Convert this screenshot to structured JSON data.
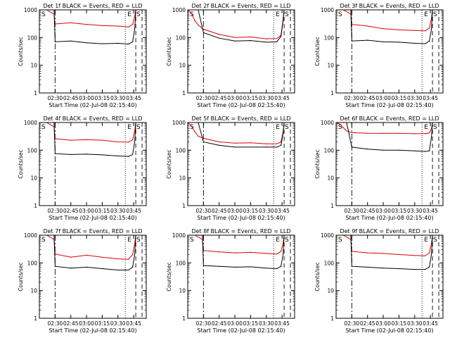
{
  "chart_data": {
    "type": "line",
    "grid": false,
    "legend": "none",
    "colors": {
      "events": "#000000",
      "lld": "#e00000",
      "axes": "#000000"
    },
    "common": {
      "xlabel": "Start Time (02-Jul-08 02:15:40)",
      "ylabel": "Counts/sec",
      "xlim": [
        "02:15",
        "03:57"
      ],
      "xticks": [
        "02:30",
        "02:45",
        "03:00",
        "03:15",
        "03:30",
        "03:45"
      ],
      "ylim": [
        1,
        1000
      ],
      "yscale": "log",
      "yticks": [
        "1",
        "10",
        "100",
        "1000"
      ],
      "series_names": [
        "Events",
        "LLD"
      ],
      "markers": [
        {
          "time": "02:30",
          "style": "dashdot"
        },
        {
          "time": "03:37",
          "style": "dotted"
        },
        {
          "time": "03:47",
          "style": "dashed"
        },
        {
          "time": "03:53",
          "style": "dashed"
        }
      ],
      "marker_labels": [
        "S",
        "E",
        "S"
      ]
    },
    "panels": [
      {
        "title": "Det 1f BLACK = Events, RED = LLD",
        "x": [
          "02:15",
          "02:22",
          "02:29",
          "02:30",
          "02:45",
          "03:00",
          "03:15",
          "03:30",
          "03:40",
          "03:44",
          "03:46",
          "03:47",
          "03:50",
          "03:52",
          "03:53",
          "03:57"
        ],
        "events": [
          1000,
          1000,
          1000,
          70,
          75,
          65,
          60,
          62,
          58,
          70,
          200,
          1000,
          1000,
          1000,
          1000,
          1000
        ],
        "lld": [
          1000,
          1000,
          700,
          310,
          340,
          300,
          270,
          260,
          240,
          300,
          600,
          1000,
          1000,
          1000,
          1000,
          1000
        ]
      },
      {
        "title": "Det 2f BLACK = Events, RED = LLD",
        "x": [
          "02:15",
          "02:18",
          "02:22",
          "02:25",
          "02:30",
          "02:45",
          "03:00",
          "03:15",
          "03:30",
          "03:40",
          "03:44",
          "03:46",
          "03:47",
          "03:50",
          "03:53",
          "03:57"
        ],
        "events": [
          1000,
          1000,
          1000,
          1000,
          150,
          95,
          75,
          78,
          68,
          70,
          110,
          400,
          1000,
          1000,
          1000,
          1000
        ],
        "lld": [
          1000,
          800,
          400,
          280,
          200,
          130,
          100,
          105,
          90,
          92,
          120,
          450,
          1000,
          1000,
          1000,
          1000
        ]
      },
      {
        "title": "Det 3f BLACK = Events, RED = LLD",
        "x": [
          "02:15",
          "02:22",
          "02:29",
          "02:30",
          "02:45",
          "03:00",
          "03:15",
          "03:30",
          "03:40",
          "03:44",
          "03:46",
          "03:47",
          "03:50",
          "03:52",
          "03:53",
          "03:57"
        ],
        "events": [
          1000,
          1000,
          1000,
          75,
          80,
          70,
          68,
          62,
          60,
          75,
          200,
          1000,
          1000,
          1000,
          1000,
          1000
        ],
        "lld": [
          1000,
          1000,
          700,
          300,
          260,
          210,
          190,
          180,
          175,
          220,
          500,
          1000,
          1000,
          1000,
          1000,
          1000
        ]
      },
      {
        "title": "Det 4f BLACK = Events, RED = LLD",
        "x": [
          "02:15",
          "02:22",
          "02:29",
          "02:30",
          "02:45",
          "03:00",
          "03:15",
          "03:30",
          "03:40",
          "03:44",
          "03:46",
          "03:47",
          "03:50",
          "03:52",
          "03:53",
          "03:57"
        ],
        "events": [
          1000,
          1000,
          1000,
          75,
          70,
          72,
          68,
          62,
          60,
          70,
          200,
          1000,
          1000,
          1000,
          1000,
          1000
        ],
        "lld": [
          1000,
          1000,
          700,
          260,
          230,
          240,
          230,
          200,
          195,
          240,
          500,
          1000,
          1000,
          1000,
          1000,
          1000
        ]
      },
      {
        "title": "Det 5f BLACK = Events, RED = LLD",
        "x": [
          "02:15",
          "02:18",
          "02:22",
          "02:25",
          "02:30",
          "02:45",
          "03:00",
          "03:15",
          "03:30",
          "03:40",
          "03:44",
          "03:46",
          "03:47",
          "03:50",
          "03:53",
          "03:57"
        ],
        "events": [
          1000,
          1000,
          1000,
          1000,
          200,
          150,
          130,
          130,
          130,
          130,
          150,
          400,
          1000,
          1000,
          1000,
          1000
        ],
        "lld": [
          1000,
          800,
          450,
          320,
          270,
          200,
          180,
          185,
          170,
          170,
          200,
          450,
          1000,
          1000,
          1000,
          1000
        ]
      },
      {
        "title": "Det 6f BLACK = Events, RED = LLD",
        "x": [
          "02:15",
          "02:18",
          "02:22",
          "02:25",
          "02:30",
          "02:45",
          "03:00",
          "03:15",
          "03:30",
          "03:40",
          "03:44",
          "03:46",
          "03:47",
          "03:50",
          "03:53",
          "03:57"
        ],
        "events": [
          1000,
          1000,
          1000,
          1000,
          130,
          110,
          100,
          100,
          95,
          90,
          95,
          300,
          1000,
          1000,
          1000,
          1000
        ],
        "lld": [
          1000,
          900,
          650,
          500,
          430,
          410,
          405,
          405,
          400,
          400,
          420,
          600,
          1000,
          1000,
          1000,
          1000
        ]
      },
      {
        "title": "Det 7f BLACK = Events, RED = LLD",
        "x": [
          "02:15",
          "02:22",
          "02:29",
          "02:30",
          "02:45",
          "03:00",
          "03:15",
          "03:30",
          "03:40",
          "03:44",
          "03:46",
          "03:47",
          "03:50",
          "03:52",
          "03:53",
          "03:57"
        ],
        "events": [
          1000,
          1000,
          1000,
          75,
          65,
          70,
          62,
          55,
          55,
          70,
          200,
          1000,
          1000,
          1000,
          1000,
          1000
        ],
        "lld": [
          1000,
          1000,
          700,
          210,
          160,
          190,
          160,
          140,
          135,
          200,
          500,
          1000,
          1000,
          1000,
          1000,
          1000
        ]
      },
      {
        "title": "Det 8f BLACK = Events, RED = LLD",
        "x": [
          "02:15",
          "02:22",
          "02:29",
          "02:30",
          "02:45",
          "03:00",
          "03:15",
          "03:30",
          "03:40",
          "03:44",
          "03:46",
          "03:47",
          "03:50",
          "03:52",
          "03:53",
          "03:57"
        ],
        "events": [
          1000,
          1000,
          1000,
          80,
          75,
          70,
          72,
          65,
          62,
          75,
          200,
          1000,
          1000,
          1000,
          1000,
          1000
        ],
        "lld": [
          1000,
          1000,
          700,
          280,
          250,
          230,
          240,
          220,
          210,
          260,
          500,
          1000,
          1000,
          1000,
          1000,
          1000
        ]
      },
      {
        "title": "Det 9f BLACK = Events, RED = LLD",
        "x": [
          "02:15",
          "02:22",
          "02:29",
          "02:30",
          "02:45",
          "03:00",
          "03:15",
          "03:30",
          "03:40",
          "03:44",
          "03:46",
          "03:47",
          "03:50",
          "03:52",
          "03:53",
          "03:57"
        ],
        "events": [
          1000,
          1000,
          1000,
          75,
          70,
          65,
          62,
          58,
          58,
          70,
          200,
          1000,
          1000,
          1000,
          1000,
          1000
        ],
        "lld": [
          1000,
          1000,
          700,
          260,
          230,
          220,
          200,
          185,
          180,
          230,
          500,
          1000,
          1000,
          1000,
          1000,
          1000
        ]
      }
    ]
  }
}
